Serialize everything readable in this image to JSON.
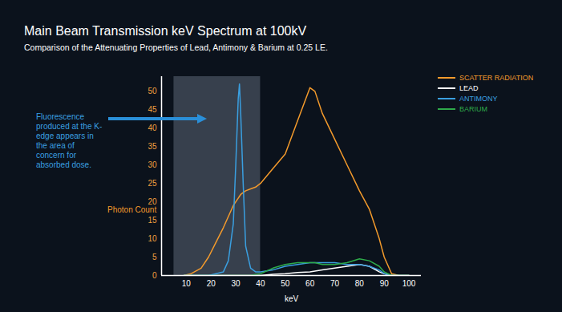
{
  "chart_data": {
    "type": "line",
    "title": "Main Beam Transmission keV Spectrum at 100kV",
    "subtitle": "Comparison of the Attenuating Properties of Lead, Antimony & Barium at 0.25 LE.",
    "x_label": "keV",
    "y_label": "Photon Count",
    "x": [
      9,
      12,
      16,
      19,
      22,
      25,
      27,
      29,
      30,
      31,
      31.5,
      32,
      33,
      34,
      36,
      38,
      40,
      45,
      50,
      55,
      60,
      62,
      65,
      70,
      75,
      80,
      84,
      88,
      90,
      93,
      96,
      100
    ],
    "series": [
      {
        "name": "SCATTER RADIATION",
        "color": "#f39a2c",
        "values": [
          0,
          0.5,
          2,
          5,
          9,
          13,
          16,
          19,
          20,
          21,
          21.5,
          22,
          22.5,
          23,
          23.5,
          24,
          25,
          29,
          33,
          42,
          51,
          50,
          44,
          37,
          30,
          23,
          18,
          10,
          5,
          0.5,
          0,
          0
        ]
      },
      {
        "name": "LEAD",
        "color": "#ffffff",
        "values": [
          0,
          0,
          0,
          0,
          0,
          0,
          0,
          0,
          0,
          0,
          0,
          0,
          0,
          0,
          0,
          0,
          0,
          0.3,
          0.5,
          0.8,
          1,
          1.2,
          1.5,
          2,
          2.5,
          3,
          2.5,
          1,
          0.5,
          0,
          0,
          0
        ]
      },
      {
        "name": "ANTIMONY",
        "color": "#3a9fe0",
        "values": [
          0,
          0,
          0,
          0,
          0.5,
          1,
          4,
          14,
          30,
          48,
          52,
          44,
          25,
          8,
          2,
          1,
          1,
          1.5,
          2.5,
          3,
          3.5,
          3.5,
          3.5,
          3.5,
          3,
          3,
          2.5,
          1.5,
          0.5,
          0,
          0,
          0
        ]
      },
      {
        "name": "BARIUM",
        "color": "#2eaa4a",
        "values": [
          0,
          0,
          0,
          0,
          0,
          0,
          0,
          0,
          0,
          0,
          0,
          0,
          0,
          0,
          0,
          0.3,
          0.5,
          2,
          3,
          3.5,
          3.5,
          3.5,
          3,
          3,
          3.5,
          4.5,
          4,
          2.5,
          1,
          0,
          0,
          0
        ]
      }
    ],
    "xlim": [
      0,
      105
    ],
    "ylim": [
      0,
      54
    ],
    "xticks": [
      10,
      20,
      30,
      40,
      50,
      60,
      70,
      80,
      90,
      100
    ],
    "yticks": [
      0,
      5,
      10,
      15,
      20,
      25,
      30,
      35,
      40,
      45,
      50
    ],
    "grid": false,
    "legend": "top-right",
    "annotation": {
      "text": "Fluorescence produced at the K-edge appears in the area of concern for absorbed dose.",
      "shaded_range": [
        5,
        40
      ]
    }
  }
}
